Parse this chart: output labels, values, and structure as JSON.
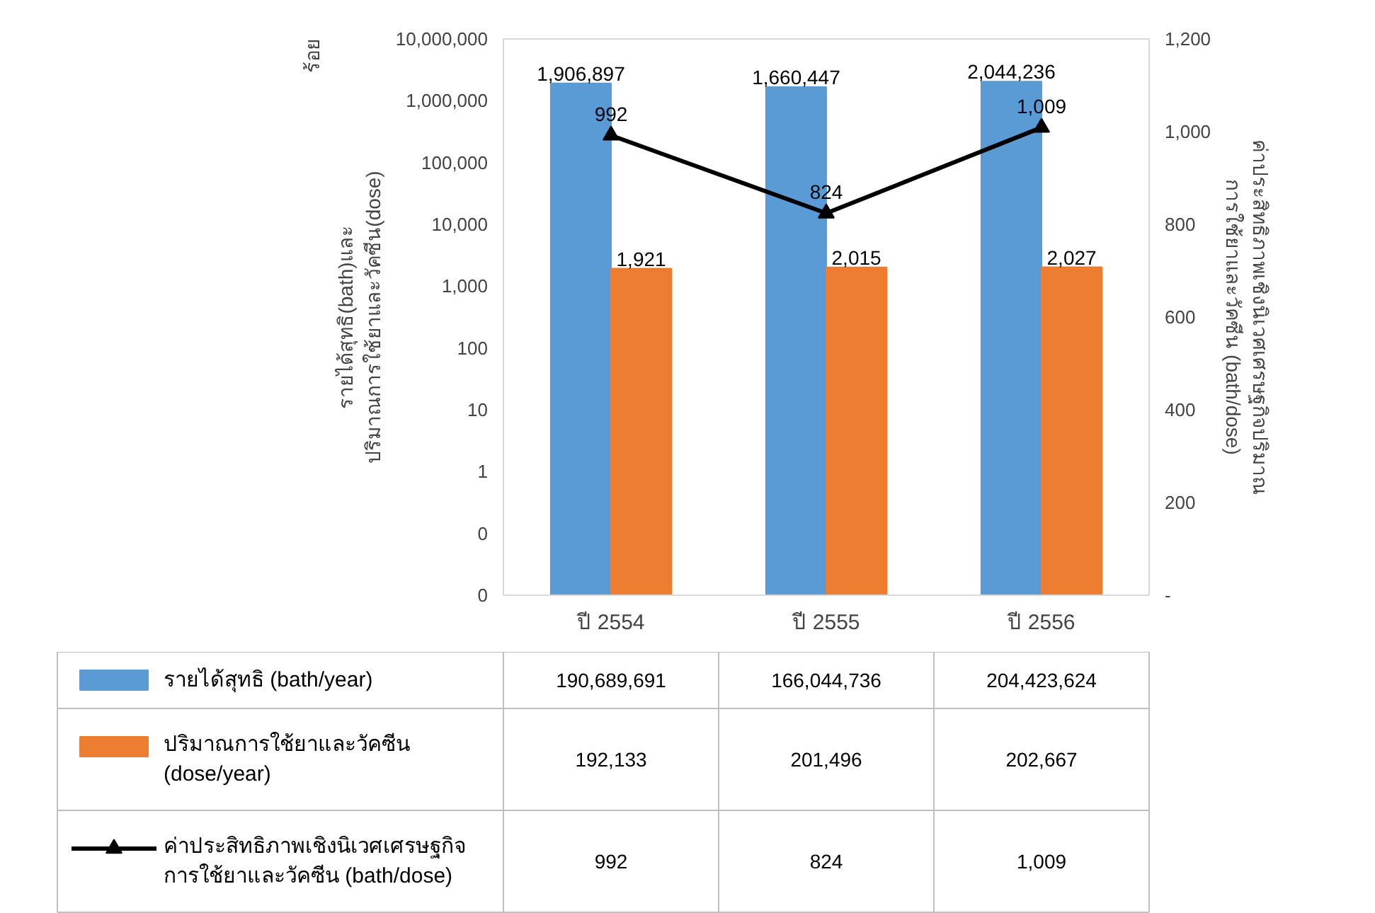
{
  "chart_data": {
    "type": "bar",
    "categories": [
      "ปี 2554",
      "ปี 2555",
      "ปี 2556"
    ],
    "ylabel": "รายได้สุทธิ(bath)และ\nปริมาณการใช้ยาและวัคซีน(dose)",
    "y2label": "ค่าประสิทธิภาพเชิงนิเวศเศรษฐกิจปริมาณ\nการใช้ยาและวัคซีน (bath/dose)",
    "log": "y",
    "ylim": [
      0.01,
      10000000
    ],
    "yticks": [
      {
        "value": 0.01,
        "label": "0"
      },
      {
        "value": 0.1,
        "label": "0"
      },
      1,
      10,
      100,
      {
        "value": 1000,
        "label": "1,000"
      },
      {
        "value": 10000,
        "label": "10,000"
      },
      {
        "value": 100000,
        "label": "100,000"
      },
      {
        "value": 1000000,
        "label": "1,000,000"
      },
      {
        "value": 10000000,
        "label": "10,000,000"
      }
    ],
    "y2lim": [
      0,
      1200
    ],
    "y2ticks": [
      {
        "value": 0,
        "label": "-"
      },
      200,
      400,
      600,
      800,
      {
        "value": 1000,
        "label": "1,000"
      },
      {
        "value": 1200,
        "label": "1,200"
      }
    ],
    "legend": "bottom",
    "series": [
      {
        "name": "รายได้สุทธิ (bath/year)",
        "color": "#5b9bd5",
        "values": [
          1906897,
          1660447,
          2044236
        ],
        "value_labels": [
          "1,906,897",
          "1,660,447",
          "2,044,236"
        ]
      },
      {
        "name": "ปริมาณการใช้ยาและวัคซีน\n(dose/year)",
        "color": "#ed7d31",
        "values": [
          1921,
          2015,
          2027
        ],
        "value_labels": [
          "1,921",
          "2,015",
          "2,027"
        ]
      },
      {
        "name": "ค่าประสิทธิภาพเชิงนิเวศเศรษฐกิจ\nการใช้ยาและวัคซีน (bath/dose)",
        "type": "line",
        "axis": "y2",
        "color": "#000000",
        "marker": "triangle",
        "values": [
          992,
          824,
          1009
        ],
        "value_labels": [
          "992",
          "824",
          "1,009"
        ]
      }
    ],
    "annotations": [
      "ร้อย",
      "190,689,691",
      "166,044,736",
      "204,423,624",
      "192,133",
      "201,496",
      "202,667",
      "992",
      "824",
      "1,009"
    ]
  }
}
